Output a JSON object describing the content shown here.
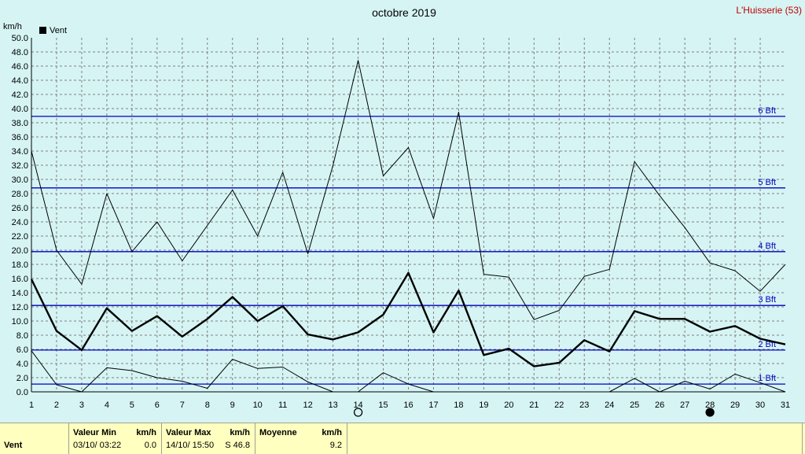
{
  "chart_data": {
    "type": "line",
    "title": "octobre 2019",
    "station": "L'Huisserie (53)",
    "ylabel": "km/h",
    "legend": "Vent",
    "ylim": [
      0,
      50
    ],
    "yticks": [
      "0.0",
      "2.0",
      "4.0",
      "6.0",
      "8.0",
      "10.0",
      "12.0",
      "14.0",
      "16.0",
      "18.0",
      "20.0",
      "22.0",
      "24.0",
      "26.0",
      "28.0",
      "30.0",
      "32.0",
      "34.0",
      "36.0",
      "38.0",
      "40.0",
      "42.0",
      "44.0",
      "46.0",
      "48.0",
      "50.0"
    ],
    "x": [
      1,
      2,
      3,
      4,
      5,
      6,
      7,
      8,
      9,
      10,
      11,
      12,
      13,
      14,
      15,
      16,
      17,
      18,
      19,
      20,
      21,
      22,
      23,
      24,
      25,
      26,
      27,
      28,
      29,
      30,
      31
    ],
    "xticks": [
      "1",
      "2",
      "3",
      "4",
      "5",
      "6",
      "7",
      "8",
      "9",
      "10",
      "11",
      "12",
      "13",
      "14",
      "15",
      "16",
      "17",
      "18",
      "19",
      "20",
      "21",
      "22",
      "23",
      "24",
      "25",
      "26",
      "27",
      "28",
      "29",
      "30",
      "31"
    ],
    "series": [
      {
        "role": "max",
        "values": [
          34.0,
          20.0,
          15.2,
          28.0,
          19.8,
          24.0,
          18.5,
          23.5,
          28.5,
          22.0,
          31.0,
          19.5,
          32.0,
          46.8,
          30.5,
          34.5,
          24.5,
          39.5,
          16.6,
          16.2,
          10.2,
          11.5,
          16.3,
          17.3,
          32.5,
          27.7,
          23.2,
          18.2,
          17.1,
          14.2,
          18.0
        ]
      },
      {
        "role": "mean",
        "values": [
          15.9,
          8.6,
          5.9,
          11.8,
          8.6,
          10.7,
          7.8,
          10.3,
          13.4,
          10.0,
          12.1,
          8.1,
          7.4,
          8.4,
          10.9,
          16.8,
          8.4,
          14.3,
          5.2,
          6.1,
          3.6,
          4.1,
          7.3,
          5.7,
          11.4,
          10.3,
          10.3,
          8.5,
          9.3,
          7.5,
          6.7
        ]
      },
      {
        "role": "min",
        "values": [
          5.8,
          1.0,
          0.0,
          3.4,
          3.0,
          2.0,
          1.5,
          0.5,
          4.6,
          3.3,
          3.5,
          1.4,
          0.0,
          0.0,
          2.7,
          1.1,
          0.0,
          null,
          null,
          null,
          null,
          null,
          null,
          0.0,
          1.9,
          0.0,
          1.5,
          0.4,
          2.5,
          1.3,
          0.0
        ]
      }
    ],
    "beaufort": [
      {
        "label": "1 Bft",
        "value": 1.1
      },
      {
        "label": "2 Bft",
        "value": 5.9
      },
      {
        "label": "3 Bft",
        "value": 12.2
      },
      {
        "label": "4 Bft",
        "value": 19.8
      },
      {
        "label": "5 Bft",
        "value": 28.8
      },
      {
        "label": "6 Bft",
        "value": 38.9
      }
    ],
    "moon": [
      {
        "day": 14,
        "phase": "full"
      },
      {
        "day": 28,
        "phase": "new"
      }
    ],
    "grid": true,
    "colors": {
      "bg": "#d6f4f4",
      "grid": "#808080",
      "beaufort": "#0000c0",
      "line": "#000000",
      "title_red": "#c00000"
    }
  },
  "footer": {
    "row_label": "Vent",
    "min_header": "Valeur Min",
    "min_unit": "km/h",
    "min_date": "03/10/  03:22",
    "min_value": "0.0",
    "max_header": "Valeur Max",
    "max_unit": "km/h",
    "max_date": "14/10/  15:50",
    "max_value": "S 46.8",
    "avg_header": "Moyenne",
    "avg_unit": "km/h",
    "avg_value": "9.2"
  }
}
